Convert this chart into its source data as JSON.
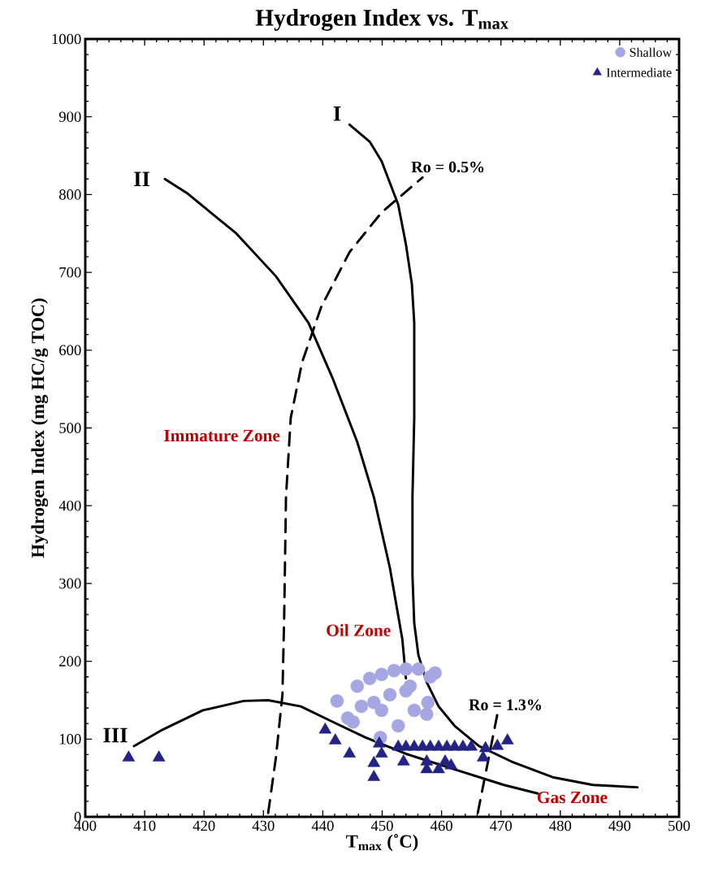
{
  "chart_data": {
    "type": "scatter",
    "title": "Hydrogen Index vs. T$_{max}$",
    "xlabel": "T$_{max}$ (˚C)",
    "ylabel": "Hydrogen Index (mg HC/g TOC)",
    "xlim": [
      400,
      500
    ],
    "ylim": [
      0,
      1000
    ],
    "xticks": [
      400,
      410,
      420,
      430,
      440,
      450,
      460,
      470,
      480,
      490,
      500
    ],
    "yticks": [
      0,
      100,
      200,
      300,
      400,
      500,
      600,
      700,
      800,
      900,
      1000
    ],
    "grid": false,
    "legend": "top right",
    "annotations": [
      "Immature Zone",
      "Oil Zone",
      "Gas Zone",
      {
        "text": "I",
        "x": 444.5,
        "y": 890
      },
      {
        "text": "II",
        "x": 413.4,
        "y": 820
      },
      {
        "text": "III",
        "x": 408.2,
        "y": 91
      },
      {
        "text": "Ro = 0.5%",
        "x": 456.8,
        "y": 822
      },
      {
        "text": "Ro = 1.3%",
        "x": 469.4,
        "y": 132
      }
    ],
    "series": [
      {
        "type": "line",
        "color": "#000000",
        "line_style": "solid",
        "x": [
          444.5,
          447.9,
          449.9,
          452.7,
          454.0,
          455.0,
          455.4,
          455.4,
          455.1,
          455.1,
          455.4,
          456.1,
          457.5,
          459.5,
          462.2,
          466.3,
          471.8,
          478.7,
          485.5,
          493.0
        ],
        "values": [
          890,
          868,
          843,
          787,
          736,
          685,
          635,
          513,
          411,
          310,
          249,
          208,
          173,
          142,
          117,
          91,
          71,
          51,
          41,
          38
        ]
      },
      {
        "type": "line",
        "color": "#000000",
        "line_style": "solid",
        "x": [
          413.4,
          417.1,
          425.3,
          432.1,
          437.6,
          441.7,
          445.8,
          448.6,
          451.3,
          453.4,
          454.0
        ],
        "values": [
          820,
          802,
          751,
          695,
          635,
          563,
          482,
          411,
          320,
          228,
          178
        ]
      },
      {
        "type": "line",
        "color": "#000000",
        "line_style": "solid",
        "x": [
          408.2,
          413.0,
          419.8,
          426.7,
          430.8,
          436.3,
          441.7,
          447.2,
          454.0,
          462.2,
          470.5,
          476.2
        ],
        "values": [
          91,
          112,
          137,
          149,
          150,
          142,
          122,
          102,
          81,
          61,
          41,
          30
        ]
      },
      {
        "type": "line",
        "color": "#000000",
        "line_style": "dashed",
        "x": [
          430.8,
          432.1,
          433.2,
          433.5,
          433.8,
          434.6,
          436.5,
          439.7,
          444.5,
          449.9,
          456.8
        ],
        "values": [
          5,
          76,
          157,
          259,
          411,
          513,
          584,
          655,
          726,
          777,
          822
        ]
      },
      {
        "type": "line",
        "color": "#000000",
        "line_style": "dashed",
        "x": [
          466.1,
          469.4
        ],
        "values": [
          5,
          132
        ]
      },
      {
        "name": "Shallow",
        "color": "#a6a6e3",
        "marker": "circle",
        "x": [
          442.4,
          444.2,
          445.8,
          447.9,
          449.9,
          452.0,
          454.0,
          456.1,
          458.1,
          448.6,
          451.3,
          454.0,
          456.8,
          457.5,
          452.7,
          446.5,
          449.9,
          445.1,
          449.7,
          455.4,
          458.9,
          454.7,
          457.7
        ],
        "values": [
          149,
          127,
          168,
          178,
          183,
          188,
          190,
          190,
          180,
          147,
          157,
          162,
          null,
          132,
          117,
          142,
          137,
          122,
          102,
          137,
          185,
          168,
          147
        ]
      },
      {
        "name": "Intermediate",
        "color": "#232385",
        "marker": "triangle",
        "x": [
          407.3,
          412.4,
          440.4,
          442.1,
          444.5,
          448.6,
          448.6,
          449.5,
          449.9,
          452.7,
          454.0,
          455.4,
          456.8,
          458.1,
          459.5,
          460.9,
          462.2,
          463.6,
          465.0,
          467.4,
          469.4,
          471.1,
          453.6,
          457.5,
          460.6,
          457.5,
          459.5,
          461.6,
          467.0
        ],
        "values": [
          76,
          76,
          112,
          98,
          81,
          69,
          51,
          94,
          81,
          90,
          90,
          90,
          90,
          90,
          90,
          90,
          90,
          90,
          90,
          88,
          91,
          98,
          71,
          71,
          71,
          61,
          61,
          66,
          76
        ]
      }
    ]
  }
}
